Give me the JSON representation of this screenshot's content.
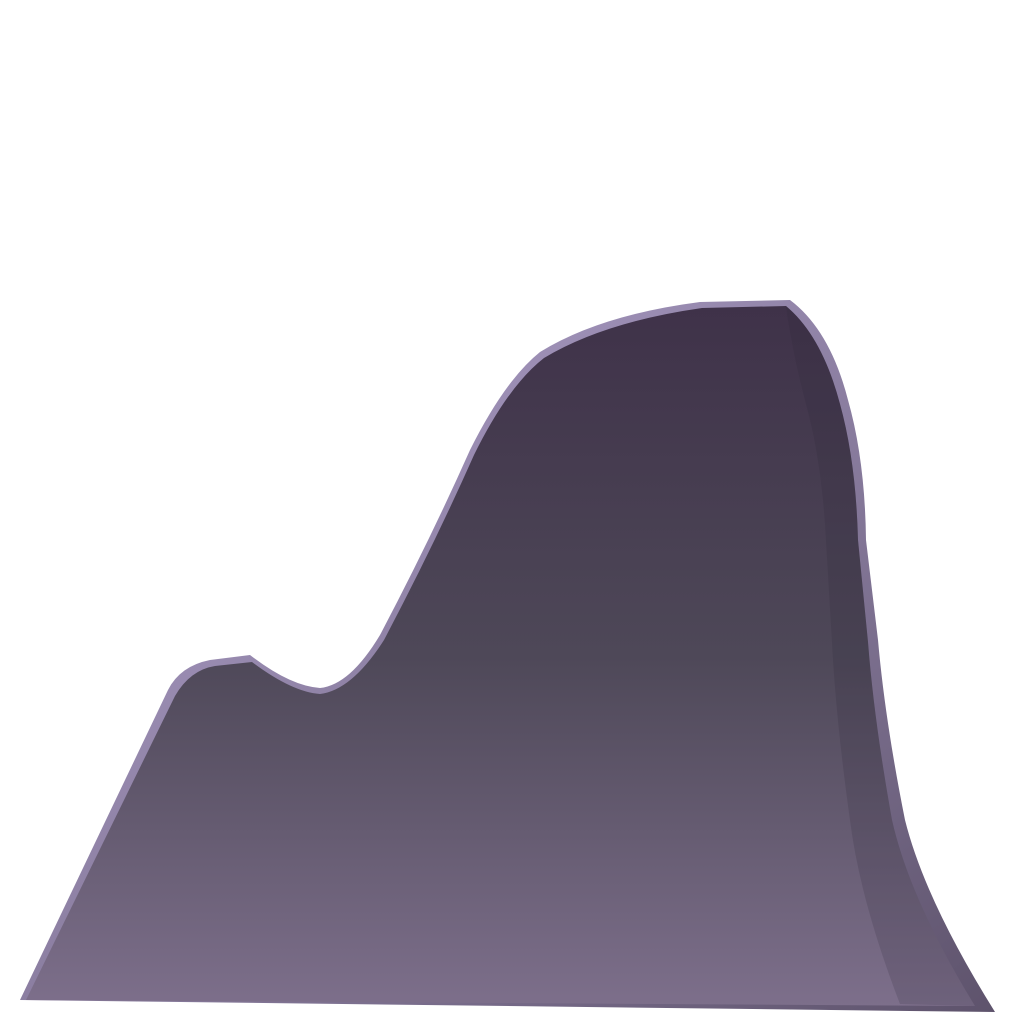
{
  "scene": {
    "background_color": "#ffffff",
    "shape_type": "rock-silhouette",
    "colors": {
      "top": "#3f3249",
      "middle": "#4e4858",
      "bottom": "#7d6f8b",
      "rim_light": "#b7a8d4",
      "rim_dark": "#5e536c"
    }
  }
}
